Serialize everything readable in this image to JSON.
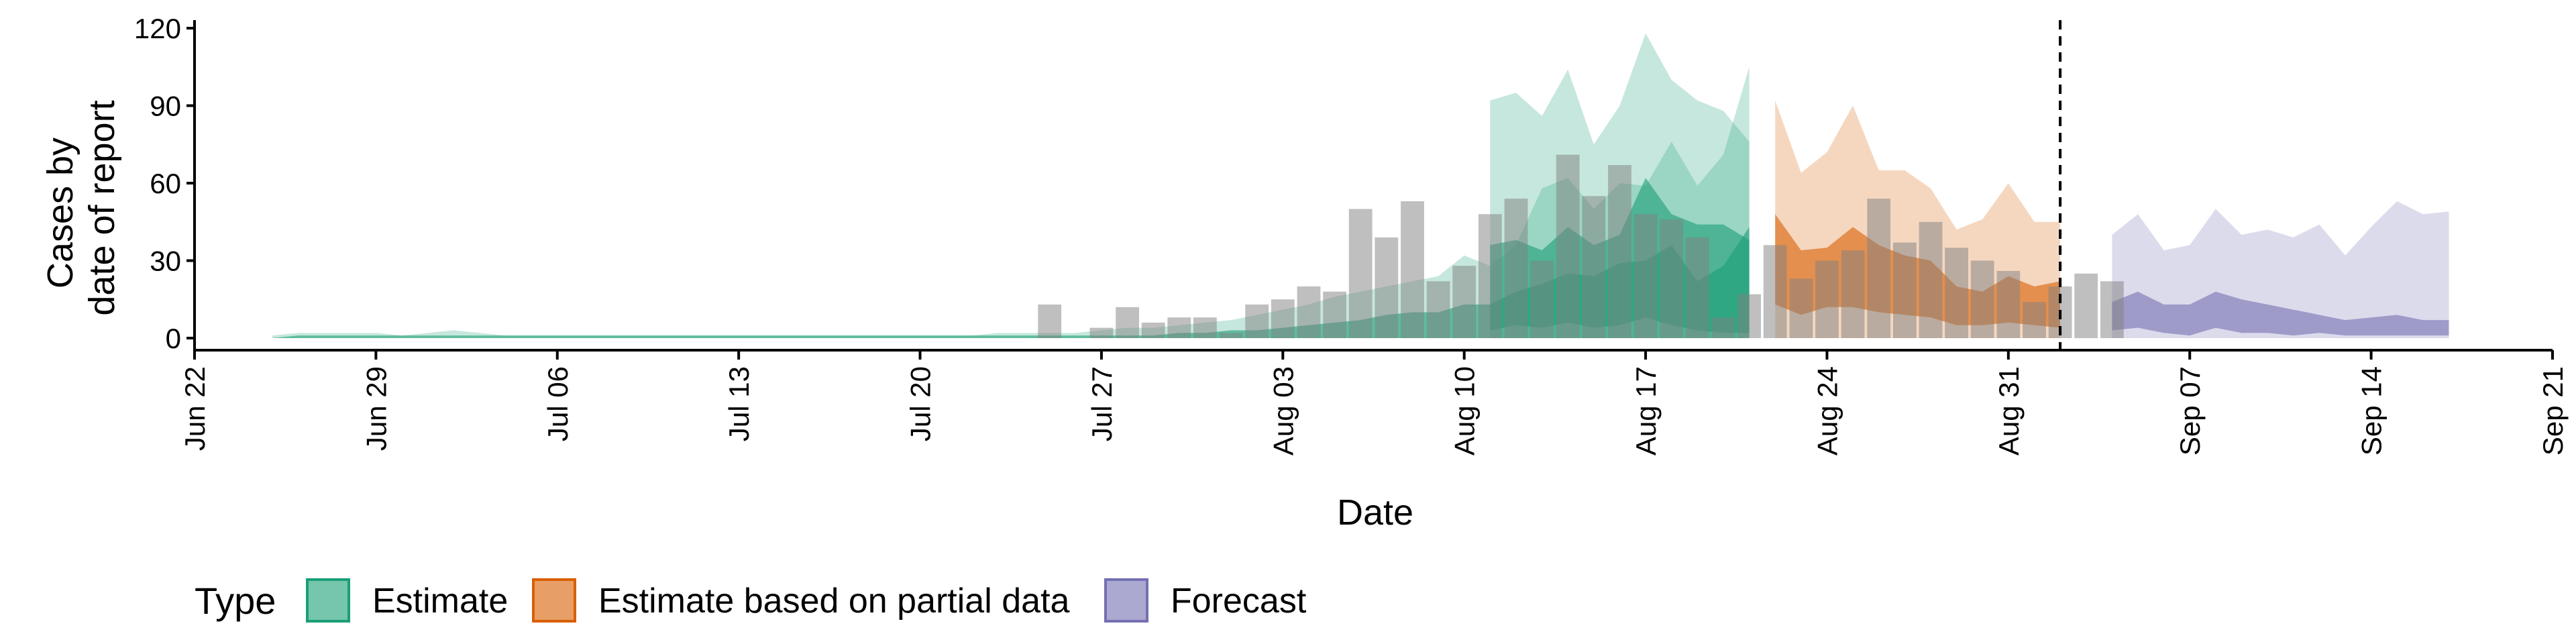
{
  "chart_data": {
    "type": "area",
    "title": "",
    "xlabel": "Date",
    "ylabel": [
      "Cases by",
      "date of report"
    ],
    "ylim": [
      0,
      120
    ],
    "yticks": [
      0,
      30,
      60,
      90,
      120
    ],
    "xlim": [
      "2020-06-22",
      "2020-09-21"
    ],
    "xticks": [
      {
        "date": "2020-06-22",
        "label": "Jun 22"
      },
      {
        "date": "2020-06-29",
        "label": "Jun 29"
      },
      {
        "date": "2020-07-06",
        "label": "Jul 06"
      },
      {
        "date": "2020-07-13",
        "label": "Jul 13"
      },
      {
        "date": "2020-07-20",
        "label": "Jul 20"
      },
      {
        "date": "2020-07-27",
        "label": "Jul 27"
      },
      {
        "date": "2020-08-03",
        "label": "Aug 03"
      },
      {
        "date": "2020-08-10",
        "label": "Aug 10"
      },
      {
        "date": "2020-08-17",
        "label": "Aug 17"
      },
      {
        "date": "2020-08-24",
        "label": "Aug 24"
      },
      {
        "date": "2020-08-31",
        "label": "Aug 31"
      },
      {
        "date": "2020-09-07",
        "label": "Sep 07"
      },
      {
        "date": "2020-09-14",
        "label": "Sep 14"
      },
      {
        "date": "2020-09-21",
        "label": "Sep 21"
      }
    ],
    "vline_date": "2020-09-02",
    "grid": false,
    "legend": {
      "title": "Type",
      "position": "bottom"
    },
    "colors": {
      "Estimate": "#1b9e77",
      "Estimate based on partial data": "#d95f02",
      "Forecast": "#7570b3",
      "bars": "#808080"
    },
    "observed_bars": {
      "start": "2020-07-25",
      "values": [
        13,
        0,
        4,
        12,
        6,
        8,
        8,
        2,
        13,
        15,
        20,
        18,
        50,
        39,
        53,
        22,
        28,
        48,
        54,
        30,
        71,
        55,
        67,
        48,
        46,
        39,
        8,
        17,
        36,
        23,
        30,
        34,
        54,
        37,
        45,
        35,
        30,
        26,
        14,
        20,
        25,
        22
      ]
    },
    "series": [
      {
        "name": "Estimate",
        "start": "2020-06-25",
        "outer_lower": [
          0,
          0,
          0,
          0,
          0,
          0,
          0,
          0,
          0,
          0,
          0,
          0,
          0,
          0,
          0,
          0,
          0,
          0,
          0,
          0,
          0,
          0,
          0,
          0,
          0,
          0,
          0,
          0,
          0,
          0,
          0,
          0,
          0,
          0,
          0,
          0,
          0,
          0,
          0,
          0,
          0,
          0,
          0,
          0,
          0,
          0,
          0,
          0,
          0,
          0,
          0,
          0,
          0,
          0,
          0,
          0,
          0,
          0
        ],
        "outer_upper": [
          1,
          2,
          2,
          2,
          2,
          1,
          2,
          3,
          2,
          1,
          1,
          1,
          1,
          1,
          1,
          1,
          1,
          1,
          1,
          1,
          1,
          1,
          1,
          1,
          1,
          1,
          1,
          1,
          2,
          2,
          2,
          2,
          3,
          4,
          4,
          5,
          6,
          7,
          9,
          11,
          13,
          16,
          18,
          20,
          22,
          24,
          32,
          28,
          36,
          58,
          62,
          50,
          60,
          59,
          76,
          59,
          71,
          105
        ],
        "inner_lower": [
          0,
          0,
          0,
          0,
          0,
          0,
          0,
          0,
          0,
          0,
          0,
          0,
          0,
          0,
          0,
          0,
          0,
          0,
          0,
          0,
          0,
          0,
          0,
          0,
          0,
          0,
          0,
          0,
          0,
          0,
          0,
          0,
          0,
          0,
          0,
          0,
          0,
          0,
          0,
          0,
          0,
          0,
          0,
          0,
          0,
          0,
          0,
          0,
          0,
          0,
          0,
          0,
          0,
          0,
          0,
          0,
          0,
          0
        ],
        "inner_upper": [
          0,
          1,
          1,
          1,
          1,
          1,
          1,
          1,
          1,
          1,
          1,
          1,
          1,
          1,
          1,
          1,
          1,
          1,
          1,
          1,
          1,
          1,
          1,
          1,
          1,
          1,
          1,
          1,
          1,
          1,
          1,
          1,
          1,
          1,
          1,
          2,
          2,
          3,
          3,
          4,
          5,
          6,
          7,
          9,
          10,
          10,
          13,
          13,
          18,
          21,
          25,
          24,
          29,
          30,
          36,
          22,
          28,
          43
        ]
      },
      {
        "name": "Estimate",
        "start": "2020-08-11",
        "outer_lower": [
          0,
          0,
          0,
          0,
          0,
          0,
          0,
          0,
          0,
          0,
          0
        ],
        "outer_upper": [
          92,
          95,
          86,
          104,
          75,
          90,
          118,
          100,
          92,
          88,
          76
        ],
        "inner_lower": [
          3,
          5,
          4,
          6,
          4,
          5,
          8,
          5,
          3,
          2,
          2
        ],
        "inner_upper": [
          36,
          38,
          34,
          43,
          36,
          40,
          62,
          48,
          44,
          44,
          38
        ]
      },
      {
        "name": "Estimate based on partial data",
        "start": "2020-08-22",
        "outer_lower": [
          0,
          0,
          0,
          0,
          0,
          0,
          0,
          0,
          0,
          0,
          0,
          0
        ],
        "outer_upper": [
          92,
          64,
          72,
          90,
          65,
          65,
          58,
          42,
          46,
          60,
          45,
          45
        ],
        "inner_lower": [
          13,
          9,
          12,
          12,
          10,
          9,
          8,
          5,
          5,
          6,
          5,
          4
        ],
        "inner_upper": [
          48,
          34,
          35,
          43,
          36,
          32,
          30,
          20,
          18,
          24,
          20,
          22
        ]
      },
      {
        "name": "Forecast",
        "start": "2020-09-04",
        "outer_lower": [
          0,
          0,
          0,
          0,
          0,
          0,
          0,
          0,
          0,
          0,
          0,
          0,
          0,
          0
        ],
        "outer_upper": [
          40,
          48,
          34,
          36,
          50,
          40,
          42,
          39,
          44,
          32,
          43,
          53,
          48,
          49
        ],
        "inner_lower": [
          3,
          4,
          2,
          1,
          4,
          2,
          2,
          1,
          2,
          1,
          1,
          1,
          1,
          1
        ],
        "inner_upper": [
          14,
          18,
          13,
          13,
          18,
          15,
          13,
          11,
          9,
          7,
          8,
          9,
          7,
          7
        ]
      }
    ]
  }
}
